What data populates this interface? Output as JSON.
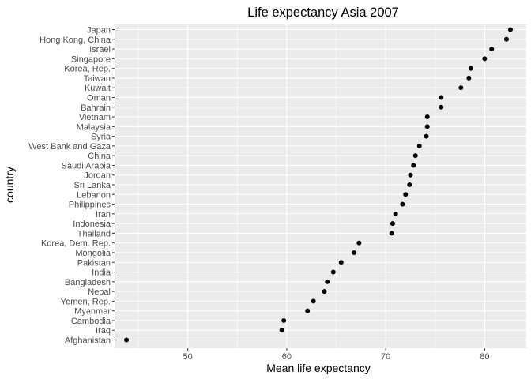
{
  "chart_data": {
    "type": "scatter",
    "title": "Life expectancy Asia 2007",
    "xlabel": "Mean life expectancy",
    "ylabel": "country",
    "xlim": [
      42.6,
      84.2
    ],
    "x_ticks": [
      50,
      60,
      70,
      80
    ],
    "grid": true,
    "legend": "none",
    "point_color": "#000000",
    "panel_color": "#ebebeb",
    "gridline_color": "#ffffff",
    "points": [
      {
        "country": "Japan",
        "x": 82.6
      },
      {
        "country": "Hong Kong, China",
        "x": 82.2
      },
      {
        "country": "Israel",
        "x": 80.7
      },
      {
        "country": "Singapore",
        "x": 80.0
      },
      {
        "country": "Korea, Rep.",
        "x": 78.6
      },
      {
        "country": "Taiwan",
        "x": 78.4
      },
      {
        "country": "Kuwait",
        "x": 77.6
      },
      {
        "country": "Oman",
        "x": 75.6
      },
      {
        "country": "Bahrain",
        "x": 75.6
      },
      {
        "country": "Vietnam",
        "x": 74.2
      },
      {
        "country": "Malaysia",
        "x": 74.2
      },
      {
        "country": "Syria",
        "x": 74.1
      },
      {
        "country": "West Bank and Gaza",
        "x": 73.4
      },
      {
        "country": "China",
        "x": 73.0
      },
      {
        "country": "Saudi Arabia",
        "x": 72.8
      },
      {
        "country": "Jordan",
        "x": 72.5
      },
      {
        "country": "Sri Lanka",
        "x": 72.4
      },
      {
        "country": "Lebanon",
        "x": 72.0
      },
      {
        "country": "Philippines",
        "x": 71.7
      },
      {
        "country": "Iran",
        "x": 71.0
      },
      {
        "country": "Indonesia",
        "x": 70.7
      },
      {
        "country": "Thailand",
        "x": 70.6
      },
      {
        "country": "Korea, Dem. Rep.",
        "x": 67.3
      },
      {
        "country": "Mongolia",
        "x": 66.8
      },
      {
        "country": "Pakistan",
        "x": 65.5
      },
      {
        "country": "India",
        "x": 64.7
      },
      {
        "country": "Bangladesh",
        "x": 64.1
      },
      {
        "country": "Nepal",
        "x": 63.8
      },
      {
        "country": "Yemen, Rep.",
        "x": 62.7
      },
      {
        "country": "Myanmar",
        "x": 62.1
      },
      {
        "country": "Cambodia",
        "x": 59.7
      },
      {
        "country": "Iraq",
        "x": 59.5
      },
      {
        "country": "Afghanistan",
        "x": 43.8
      }
    ]
  }
}
